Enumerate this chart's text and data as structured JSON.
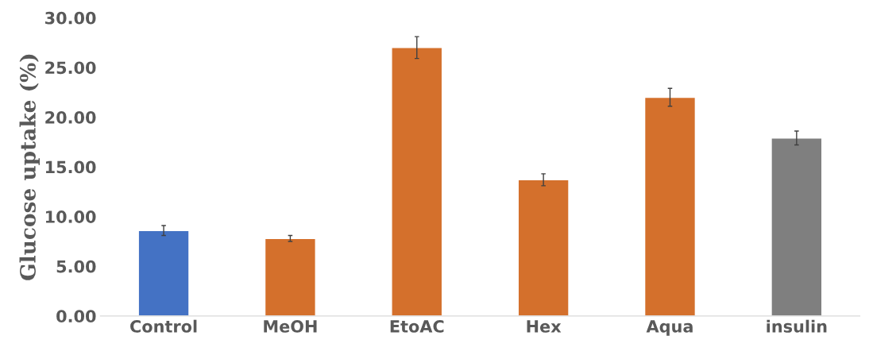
{
  "chart_data": {
    "type": "bar",
    "ylabel": "Glucose uptake (%)",
    "categories": [
      "Control",
      "MeOH",
      "EtoAC",
      "Hex",
      "Aqua",
      "insulin"
    ],
    "values": [
      8.6,
      7.8,
      27.0,
      13.7,
      22.0,
      17.9
    ],
    "errors": [
      0.5,
      0.3,
      1.1,
      0.6,
      0.9,
      0.7
    ],
    "colors": [
      "#4472c4",
      "#d4702c",
      "#d4702c",
      "#d4702c",
      "#d4702c",
      "#7f7f7f"
    ],
    "ylim": [
      0,
      30
    ],
    "yticks": [
      {
        "value": 0,
        "label": "0.00"
      },
      {
        "value": 5,
        "label": "5.00"
      },
      {
        "value": 10,
        "label": "10.00"
      },
      {
        "value": 15,
        "label": "15.00"
      },
      {
        "value": 20,
        "label": "20.00"
      },
      {
        "value": 25,
        "label": "25.00"
      },
      {
        "value": 30,
        "label": "30.00"
      }
    ],
    "grid": false
  }
}
